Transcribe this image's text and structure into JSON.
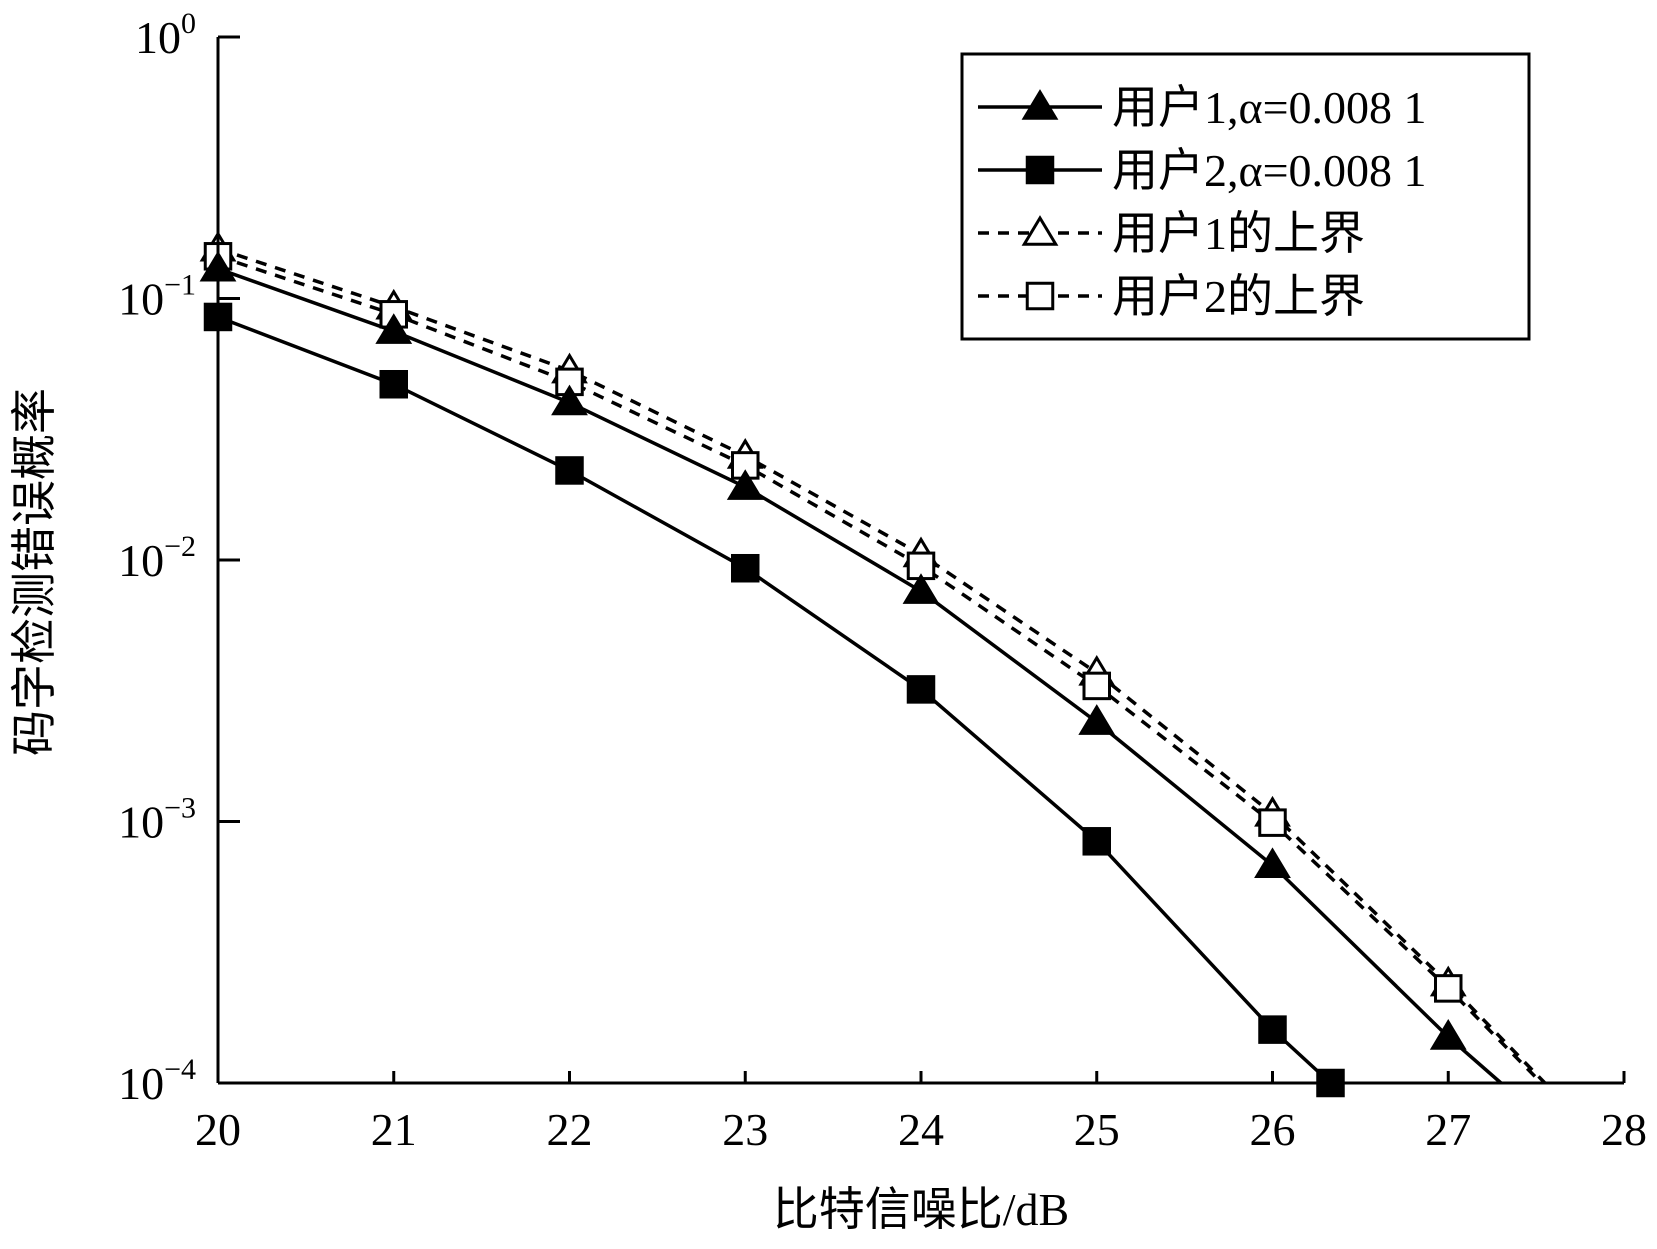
{
  "chart_data": {
    "type": "line",
    "title": "",
    "xlabel": "比特信噪比/dB",
    "ylabel": "码字检测错误概率",
    "xlim": [
      20,
      28
    ],
    "ylim": [
      0.0001,
      1
    ],
    "yscale": "log",
    "xticks": [
      "20",
      "21",
      "22",
      "23",
      "24",
      "25",
      "26",
      "27",
      "28"
    ],
    "yticks": [
      {
        "base": "10",
        "exp": "0"
      },
      {
        "base": "10",
        "exp": "−1"
      },
      {
        "base": "10",
        "exp": "−2"
      },
      {
        "base": "10",
        "exp": "−3"
      },
      {
        "base": "10",
        "exp": "−4"
      }
    ],
    "grid": false,
    "legend_position": "top-right",
    "series": [
      {
        "name": "用户1,α=0.008 1",
        "style": "solid",
        "marker": "filled-triangle",
        "x": [
          20,
          21,
          22,
          23,
          24,
          25,
          26,
          27,
          27.3
        ],
        "y": [
          0.13,
          0.075,
          0.04,
          0.019,
          0.0076,
          0.0024,
          0.00068,
          0.00015,
          0.0001
        ]
      },
      {
        "name": "用户2,α=0.008 1",
        "style": "solid",
        "marker": "filled-square",
        "x": [
          20,
          21,
          22,
          23,
          24,
          25,
          26,
          26.33
        ],
        "y": [
          0.085,
          0.047,
          0.022,
          0.0093,
          0.0032,
          0.00084,
          0.00016,
          0.0001
        ]
      },
      {
        "name": "用户1的上界",
        "style": "dashed",
        "marker": "open-triangle",
        "x": [
          20,
          21,
          22,
          23,
          24,
          25,
          26,
          27,
          27.55
        ],
        "y": [
          0.155,
          0.093,
          0.053,
          0.025,
          0.0105,
          0.0037,
          0.00107,
          0.00024,
          0.0001
        ]
      },
      {
        "name": "用户2的上界",
        "style": "dashed",
        "marker": "open-square",
        "x": [
          20,
          21,
          22,
          23,
          24,
          25,
          26,
          27,
          27.53
        ],
        "y": [
          0.145,
          0.087,
          0.048,
          0.023,
          0.0095,
          0.0033,
          0.00099,
          0.00023,
          0.0001
        ]
      }
    ]
  }
}
